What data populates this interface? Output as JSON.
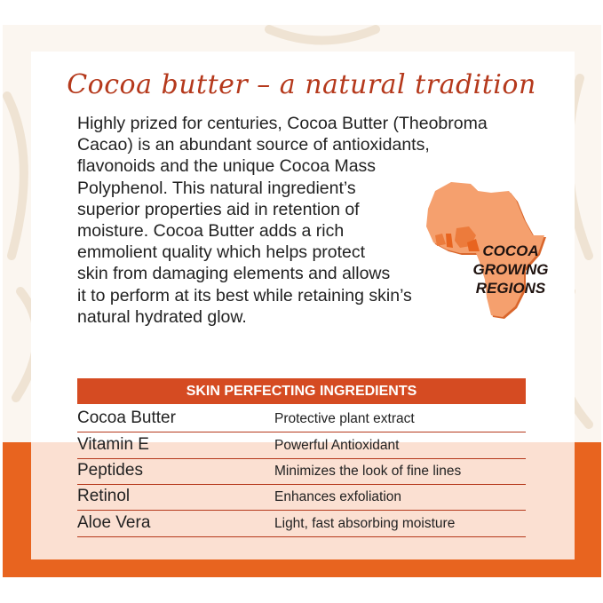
{
  "title": "Cocoa butter – a natural tradition",
  "body_lines": [
    "Highly prized for centuries, Cocoa Butter (Theobroma",
    "Cacao) is an abundant source of antioxidants,",
    "flavonoids and the unique Cocoa Mass",
    "Polyphenol. This natural ingredient’s",
    "superior properties aid in retention of",
    "moisture. Cocoa Butter adds a rich",
    "emmolient quality which helps protect",
    "skin from damaging elements and allows",
    "it to perform at its best while retaining skin’s",
    "natural hydrated glow."
  ],
  "map": {
    "label_lines": [
      "COCOA",
      "GROWING",
      "REGIONS"
    ],
    "icon": "africa-map",
    "fill": "#f5a06e",
    "highlight": "#e8641f"
  },
  "table": {
    "header": "SKIN PERFECTING INGREDIENTS",
    "rows": [
      {
        "name": "Cocoa Butter",
        "desc": "Protective plant extract"
      },
      {
        "name": "Vitamin E",
        "desc": "Powerful Antioxidant"
      },
      {
        "name": "Peptides",
        "desc": "Minimizes the look of fine lines"
      },
      {
        "name": "Retinol",
        "desc": "Enhances exfoliation"
      },
      {
        "name": "Aloe Vera",
        "desc": "Light, fast absorbing moisture"
      }
    ]
  },
  "colors": {
    "accent": "#b5391c",
    "header": "#d54b22",
    "orange": "#e8641f"
  }
}
